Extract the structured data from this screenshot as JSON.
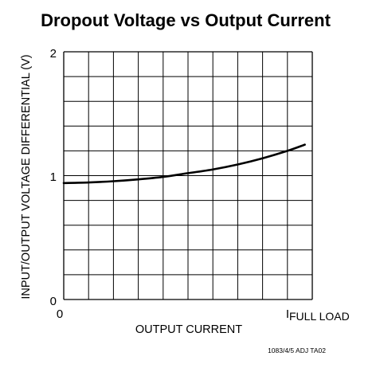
{
  "chart_data": {
    "type": "line",
    "title": "Dropout Voltage vs Output Current",
    "xlabel": "OUTPUT CURRENT",
    "ylabel": "INPUT/OUTPUT VOLTAGE DIFFERENTIAL (V)",
    "x_ticks": {
      "start": "0",
      "end_main": "I",
      "end_sub": "FULL LOAD"
    },
    "y_ticks": [
      "0",
      "1",
      "2"
    ],
    "ylim": [
      0,
      2
    ],
    "xlim": [
      0,
      1
    ],
    "x_scale_note": "x normalized: 0 = zero output current, 1 = full load current",
    "grid": true,
    "line_color": "#000000",
    "series": [
      {
        "x": [
          0,
          0.1,
          0.2,
          0.3,
          0.4,
          0.5,
          0.6,
          0.7,
          0.8,
          0.9,
          0.97
        ],
        "values": [
          0.94,
          0.945,
          0.955,
          0.97,
          0.99,
          1.02,
          1.05,
          1.09,
          1.14,
          1.2,
          1.25
        ]
      }
    ]
  },
  "footnote": "1083/4/5 ADJ TA02"
}
